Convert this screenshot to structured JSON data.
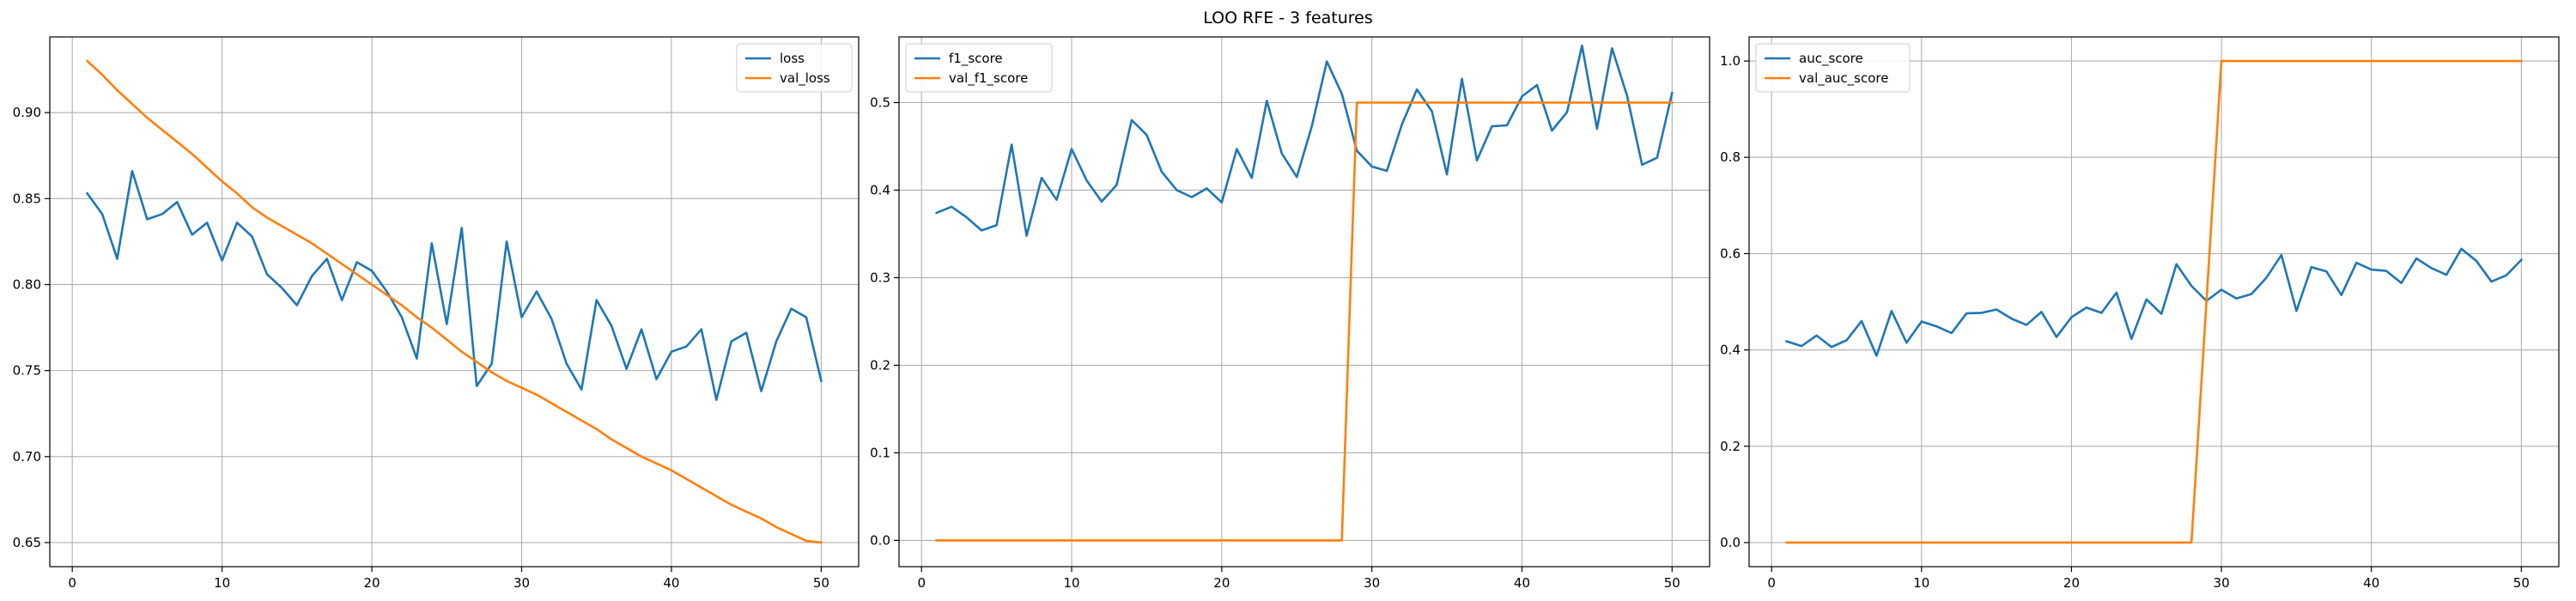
{
  "figure": {
    "title": "LOO RFE - 3 features"
  },
  "colors": {
    "series1": "#1f77b4",
    "series2": "#ff7f0e",
    "grid": "#b0b0b0",
    "axes": "#000000"
  },
  "chart_data": [
    {
      "type": "line",
      "title": "",
      "xlabel": "",
      "ylabel": "",
      "grid": true,
      "legend_position": "top-right",
      "xlim": [
        -1.5,
        52.5
      ],
      "ylim": [
        0.636,
        0.944
      ],
      "xticks": [
        0,
        10,
        20,
        30,
        40,
        50
      ],
      "yticks": [
        0.65,
        0.7,
        0.75,
        0.8,
        0.85,
        0.9
      ],
      "ytick_labels": [
        "0.65",
        "0.70",
        "0.75",
        "0.80",
        "0.85",
        "0.90"
      ],
      "x": [
        1,
        2,
        3,
        4,
        5,
        6,
        7,
        8,
        9,
        10,
        11,
        12,
        13,
        14,
        15,
        16,
        17,
        18,
        19,
        20,
        21,
        22,
        23,
        24,
        25,
        26,
        27,
        28,
        29,
        30,
        31,
        32,
        33,
        34,
        35,
        36,
        37,
        38,
        39,
        40,
        41,
        42,
        43,
        44,
        45,
        46,
        47,
        48,
        49,
        50
      ],
      "series": [
        {
          "name": "loss",
          "color": "#1f77b4",
          "values": [
            0.853,
            0.841,
            0.815,
            0.866,
            0.838,
            0.841,
            0.848,
            0.829,
            0.836,
            0.814,
            0.836,
            0.828,
            0.806,
            0.798,
            0.788,
            0.805,
            0.815,
            0.791,
            0.813,
            0.808,
            0.796,
            0.781,
            0.757,
            0.824,
            0.777,
            0.833,
            0.741,
            0.754,
            0.825,
            0.781,
            0.796,
            0.78,
            0.754,
            0.739,
            0.791,
            0.776,
            0.751,
            0.774,
            0.745,
            0.761,
            0.764,
            0.774,
            0.733,
            0.767,
            0.772,
            0.738,
            0.767,
            0.786,
            0.781,
            0.744
          ]
        },
        {
          "name": "val_loss",
          "color": "#ff7f0e",
          "values": [
            0.93,
            0.922,
            0.913,
            0.905,
            0.897,
            0.89,
            0.883,
            0.876,
            0.868,
            0.86,
            0.853,
            0.845,
            0.839,
            0.834,
            0.829,
            0.824,
            0.818,
            0.812,
            0.806,
            0.8,
            0.794,
            0.788,
            0.781,
            0.775,
            0.768,
            0.761,
            0.755,
            0.749,
            0.744,
            0.74,
            0.736,
            0.731,
            0.726,
            0.721,
            0.716,
            0.71,
            0.705,
            0.7,
            0.696,
            0.692,
            0.687,
            0.682,
            0.677,
            0.672,
            0.668,
            0.664,
            0.659,
            0.655,
            0.651,
            0.65
          ]
        }
      ]
    },
    {
      "type": "line",
      "title": "",
      "xlabel": "",
      "ylabel": "",
      "grid": true,
      "legend_position": "top-left",
      "xlim": [
        -1.5,
        52.5
      ],
      "ylim": [
        -0.03,
        0.575
      ],
      "xticks": [
        0,
        10,
        20,
        30,
        40,
        50
      ],
      "yticks": [
        0.0,
        0.1,
        0.2,
        0.3,
        0.4,
        0.5
      ],
      "ytick_labels": [
        "0.0",
        "0.1",
        "0.2",
        "0.3",
        "0.4",
        "0.5"
      ],
      "x": [
        1,
        2,
        3,
        4,
        5,
        6,
        7,
        8,
        9,
        10,
        11,
        12,
        13,
        14,
        15,
        16,
        17,
        18,
        19,
        20,
        21,
        22,
        23,
        24,
        25,
        26,
        27,
        28,
        29,
        30,
        31,
        32,
        33,
        34,
        35,
        36,
        37,
        38,
        39,
        40,
        41,
        42,
        43,
        44,
        45,
        46,
        47,
        48,
        49,
        50
      ],
      "series": [
        {
          "name": "f1_score",
          "color": "#1f77b4",
          "values": [
            0.374,
            0.381,
            0.369,
            0.354,
            0.36,
            0.452,
            0.348,
            0.414,
            0.389,
            0.447,
            0.411,
            0.387,
            0.406,
            0.48,
            0.463,
            0.421,
            0.4,
            0.392,
            0.402,
            0.386,
            0.447,
            0.414,
            0.502,
            0.442,
            0.415,
            0.473,
            0.547,
            0.51,
            0.445,
            0.427,
            0.422,
            0.475,
            0.515,
            0.49,
            0.418,
            0.527,
            0.434,
            0.473,
            0.474,
            0.507,
            0.52,
            0.468,
            0.489,
            0.565,
            0.47,
            0.562,
            0.508,
            0.429,
            0.437,
            0.511
          ]
        },
        {
          "name": "val_f1_score",
          "color": "#ff7f0e",
          "values": [
            0,
            0,
            0,
            0,
            0,
            0,
            0,
            0,
            0,
            0,
            0,
            0,
            0,
            0,
            0,
            0,
            0,
            0,
            0,
            0,
            0,
            0,
            0,
            0,
            0,
            0,
            0,
            0,
            0.5,
            0.5,
            0.5,
            0.5,
            0.5,
            0.5,
            0.5,
            0.5,
            0.5,
            0.5,
            0.5,
            0.5,
            0.5,
            0.5,
            0.5,
            0.5,
            0.5,
            0.5,
            0.5,
            0.5,
            0.5,
            0.5
          ]
        }
      ]
    },
    {
      "type": "line",
      "title": "",
      "xlabel": "",
      "ylabel": "",
      "grid": true,
      "legend_position": "top-left",
      "xlim": [
        -1.5,
        52.5
      ],
      "ylim": [
        -0.05,
        1.05
      ],
      "xticks": [
        0,
        10,
        20,
        30,
        40,
        50
      ],
      "yticks": [
        0.0,
        0.2,
        0.4,
        0.6,
        0.8,
        1.0
      ],
      "ytick_labels": [
        "0.0",
        "0.2",
        "0.4",
        "0.6",
        "0.8",
        "1.0"
      ],
      "x": [
        1,
        2,
        3,
        4,
        5,
        6,
        7,
        8,
        9,
        10,
        11,
        12,
        13,
        14,
        15,
        16,
        17,
        18,
        19,
        20,
        21,
        22,
        23,
        24,
        25,
        26,
        27,
        28,
        29,
        30,
        31,
        32,
        33,
        34,
        35,
        36,
        37,
        38,
        39,
        40,
        41,
        42,
        43,
        44,
        45,
        46,
        47,
        48,
        49,
        50
      ],
      "series": [
        {
          "name": "auc_score",
          "color": "#1f77b4",
          "values": [
            0.418,
            0.408,
            0.43,
            0.406,
            0.42,
            0.46,
            0.388,
            0.481,
            0.415,
            0.459,
            0.449,
            0.435,
            0.476,
            0.477,
            0.484,
            0.465,
            0.452,
            0.479,
            0.427,
            0.468,
            0.488,
            0.477,
            0.519,
            0.423,
            0.505,
            0.475,
            0.578,
            0.533,
            0.502,
            0.525,
            0.507,
            0.516,
            0.55,
            0.597,
            0.481,
            0.572,
            0.563,
            0.514,
            0.581,
            0.567,
            0.564,
            0.539,
            0.59,
            0.57,
            0.556,
            0.61,
            0.585,
            0.542,
            0.555,
            0.587
          ]
        },
        {
          "name": "val_auc_score",
          "color": "#ff7f0e",
          "values": [
            0,
            0,
            0,
            0,
            0,
            0,
            0,
            0,
            0,
            0,
            0,
            0,
            0,
            0,
            0,
            0,
            0,
            0,
            0,
            0,
            0,
            0,
            0,
            0,
            0,
            0,
            0,
            0,
            0.5,
            1,
            1,
            1,
            1,
            1,
            1,
            1,
            1,
            1,
            1,
            1,
            1,
            1,
            1,
            1,
            1,
            1,
            1,
            1,
            1,
            1
          ]
        }
      ]
    }
  ]
}
